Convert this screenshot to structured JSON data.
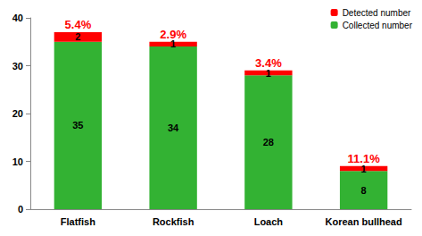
{
  "chart_data": {
    "type": "bar",
    "categories": [
      "Flatfish",
      "Rockfish",
      "Loach",
      "Korean bullhead"
    ],
    "series": [
      {
        "name": "Collected number",
        "color": "#33b233",
        "values": [
          35,
          34,
          28,
          8
        ]
      },
      {
        "name": "Detected number",
        "color": "#ff0000",
        "values": [
          2,
          1,
          1,
          1
        ]
      }
    ],
    "annotations": [
      "5.4%",
      "2.9%",
      "3.4%",
      "11.1%"
    ],
    "ylim": [
      0,
      40
    ],
    "yticks": [
      0,
      10,
      20,
      30,
      40
    ],
    "stacked": true,
    "data_labels": true,
    "grid": false,
    "legend": "top-right"
  }
}
